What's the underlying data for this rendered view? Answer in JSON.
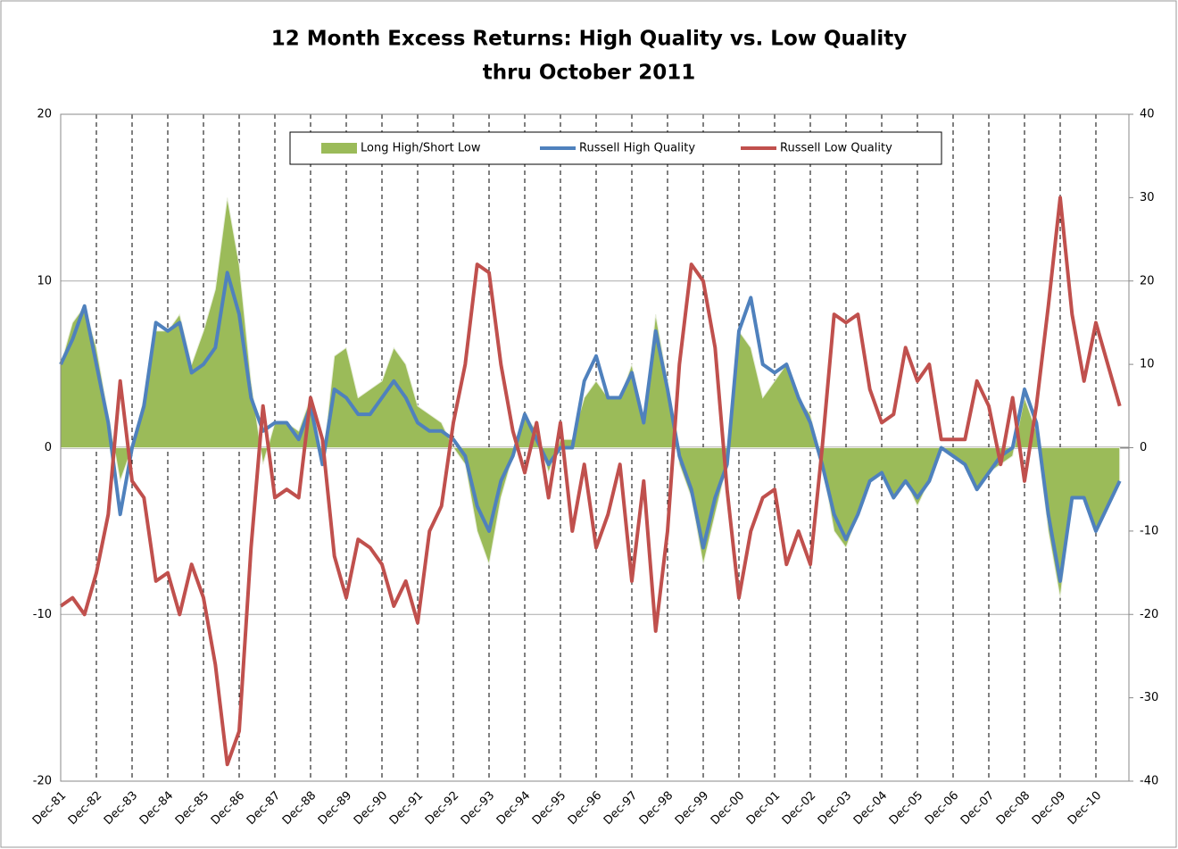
{
  "chart_data": {
    "type": "line",
    "title": "12 Month Excess Returns: High Quality vs. Low Quality",
    "subtitle": "thru October 2011",
    "categories": [
      "Dec-81",
      null,
      null,
      "Dec-82",
      null,
      null,
      "Dec-83",
      null,
      null,
      "Dec-84",
      null,
      null,
      "Dec-85",
      null,
      null,
      "Dec-86",
      null,
      null,
      "Dec-87",
      null,
      null,
      "Dec-88",
      null,
      null,
      "Dec-89",
      null,
      null,
      "Dec-90",
      null,
      null,
      "Dec-91",
      null,
      null,
      "Dec-92",
      null,
      null,
      "Dec-93",
      null,
      null,
      "Dec-94",
      null,
      null,
      "Dec-95",
      null,
      null,
      "Dec-96",
      null,
      null,
      "Dec-97",
      null,
      null,
      "Dec-98",
      null,
      null,
      "Dec-99",
      null,
      null,
      "Dec-00",
      null,
      null,
      "Dec-01",
      null,
      null,
      "Dec-02",
      null,
      null,
      "Dec-03",
      null,
      null,
      "Dec-04",
      null,
      null,
      "Dec-05",
      null,
      null,
      "Dec-06",
      null,
      null,
      "Dec-07",
      null,
      null,
      "Dec-08",
      null,
      null,
      "Dec-09",
      null,
      null,
      "Dec-10",
      null,
      null
    ],
    "series": [
      {
        "name": "Long High/Short Low",
        "color": "#9bbb59",
        "kind": "area",
        "values": [
          5,
          7.5,
          8.5,
          6,
          2,
          -2,
          0,
          3,
          7,
          7,
          8,
          5,
          7,
          9.5,
          15,
          11,
          4,
          -1,
          1.5,
          1.5,
          1,
          3,
          -1,
          5.5,
          6,
          3,
          3.5,
          4,
          6,
          5,
          2.5,
          2,
          1.5,
          0,
          -1,
          -5,
          -7,
          -3,
          -0.5,
          2,
          1,
          -1.5,
          0.5,
          0.5,
          3,
          4,
          3,
          3,
          5,
          1.5,
          8,
          4,
          -1,
          -3,
          -7,
          -4,
          -1,
          7,
          6,
          3,
          4,
          5,
          3,
          2,
          -1,
          -5,
          -6,
          -4,
          -2,
          -1.5,
          -3,
          -2,
          -3.5,
          -2,
          0,
          -0.5,
          -1,
          -2.5,
          -1.5,
          -1,
          -0.5,
          3,
          1,
          -5,
          -9,
          -3,
          -3,
          -5,
          -3.5,
          -2
        ]
      },
      {
        "name": "Russell High Quality",
        "color": "#4f81bd",
        "values": [
          5,
          6.5,
          8.5,
          5,
          1.5,
          -4,
          0,
          2.5,
          7.5,
          7,
          7.5,
          4.5,
          5,
          6,
          10.5,
          8,
          3,
          1,
          1.5,
          1.5,
          0.5,
          2.5,
          -1,
          3.5,
          3,
          2,
          2,
          3,
          4,
          3,
          1.5,
          1,
          1,
          0.5,
          -0.5,
          -3.5,
          -5,
          -2,
          -0.5,
          2,
          0.5,
          -1,
          0,
          0,
          4,
          5.5,
          3,
          3,
          4.5,
          1.5,
          7,
          3.5,
          -0.5,
          -2.5,
          -6,
          -3,
          -1,
          7,
          9,
          5,
          4.5,
          5,
          3,
          1.5,
          -1,
          -4,
          -5.5,
          -4,
          -2,
          -1.5,
          -3,
          -2,
          -3,
          -2,
          0,
          -0.5,
          -1,
          -2.5,
          -1.5,
          -0.5,
          0,
          3.5,
          1.5,
          -4,
          -8,
          -3,
          -3,
          -5,
          -3.5,
          -2
        ]
      },
      {
        "name": "Russell Low Quality",
        "color": "#c0504d",
        "axis": "y2",
        "values": [
          -19,
          -18,
          -20,
          -15,
          -8,
          8,
          -4,
          -6,
          -16,
          -15,
          -20,
          -14,
          -18,
          -26,
          -38,
          -34,
          -12,
          5,
          -6,
          -5,
          -6,
          6,
          1,
          -13,
          -18,
          -11,
          -12,
          -14,
          -19,
          -16,
          -21,
          -10,
          -7,
          3,
          10,
          22,
          21,
          10,
          2,
          -3,
          3,
          -6,
          3,
          -10,
          -2,
          -12,
          -8,
          -2,
          -16,
          -4,
          -22,
          -10,
          10,
          22,
          20,
          12,
          -5,
          -18,
          -10,
          -6,
          -5,
          -14,
          -10,
          -14,
          0,
          16,
          15,
          16,
          7,
          3,
          4,
          12,
          8,
          10,
          1,
          1,
          1,
          8,
          5,
          -2,
          6,
          -4,
          5,
          17,
          30,
          16,
          8,
          15,
          10,
          5
        ]
      }
    ],
    "ylim": [
      -20,
      20
    ],
    "yticks": [
      -20,
      -10,
      0,
      10,
      20
    ],
    "y2lim": [
      -40,
      40
    ],
    "y2ticks": [
      -40,
      -30,
      -20,
      -10,
      0,
      10,
      20,
      30,
      40
    ],
    "grid": true,
    "legend": "top"
  }
}
